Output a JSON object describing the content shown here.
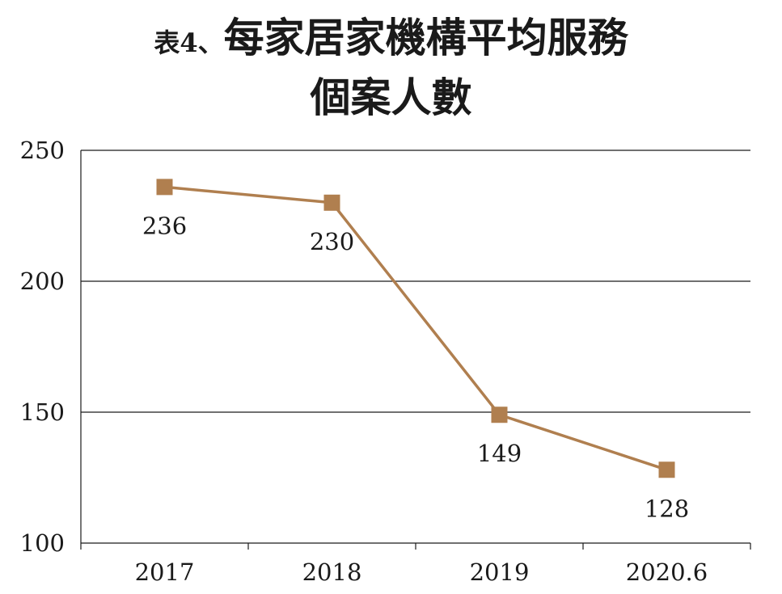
{
  "title": {
    "prefix": "表4、",
    "main_line1": "每家居家機構平均服務",
    "main_line2": "個案人數"
  },
  "colors": {
    "series": "#b07f4f",
    "grid": "#1a1a1a",
    "text": "#1a1a1a"
  },
  "chart_data": {
    "type": "line",
    "categories": [
      "2017",
      "2018",
      "2019",
      "2020.6"
    ],
    "series": [
      {
        "values": [
          236,
          230,
          149,
          128
        ],
        "marker": "square",
        "data_labels": [
          "236",
          "230",
          "149",
          "128"
        ]
      }
    ],
    "ylim": [
      100,
      250
    ],
    "yticks": [
      100,
      150,
      200,
      250
    ],
    "ytick_labels": [
      "100",
      "150",
      "200",
      "250"
    ],
    "xlabel": "",
    "ylabel": "",
    "grid": "horizontal",
    "legend": "none"
  }
}
